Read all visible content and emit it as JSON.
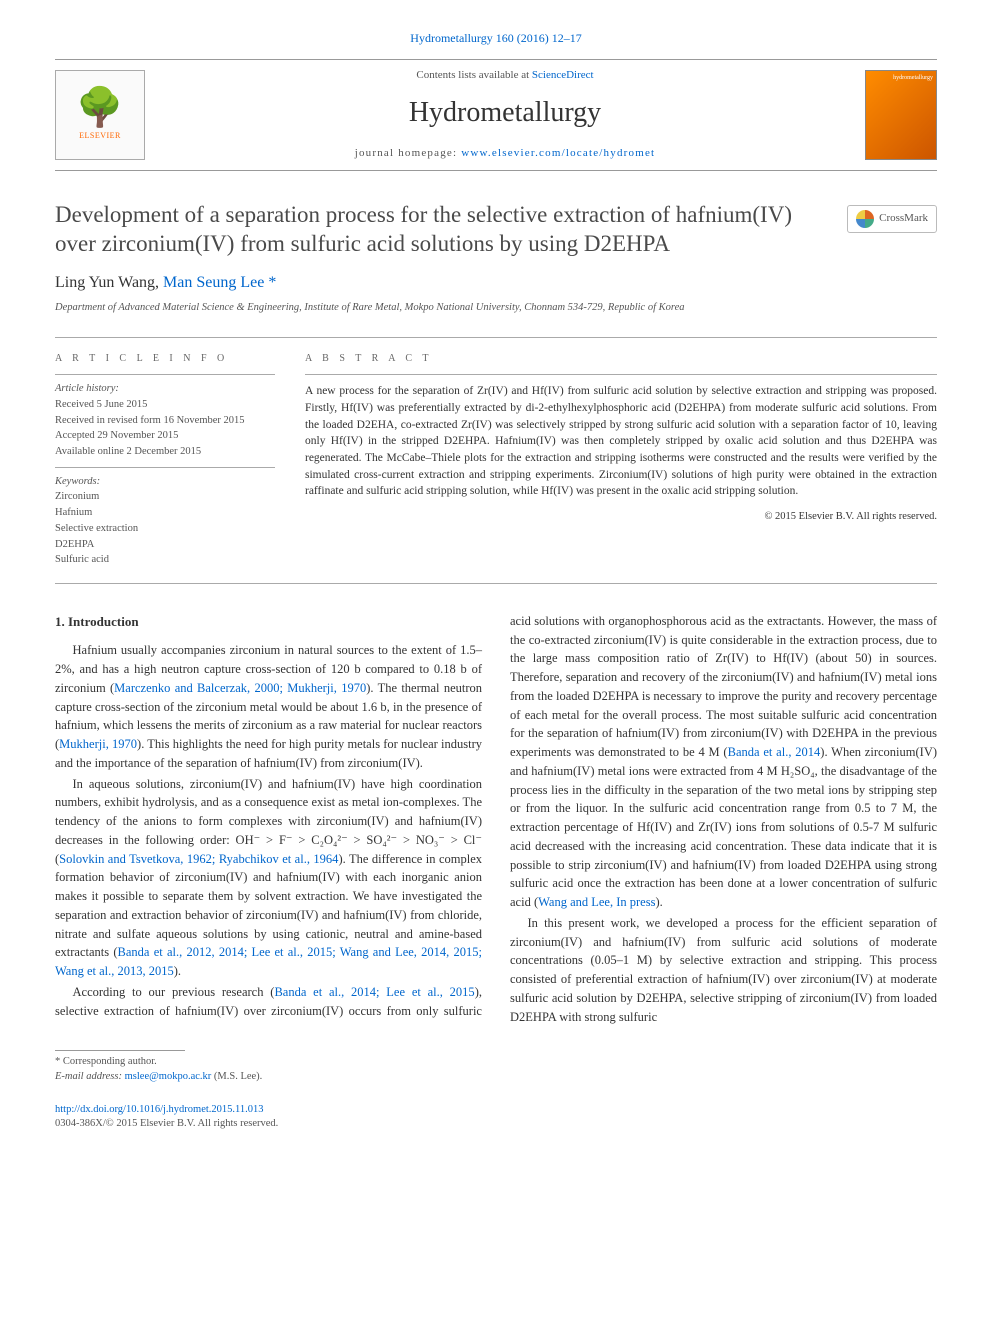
{
  "journal_ref": {
    "name": "Hydrometallurgy",
    "vol": "160 (2016) 12–17",
    "link_text": "Hydrometallurgy 160 (2016) 12–17"
  },
  "header": {
    "contents_avail": "Contents lists available at ",
    "sciencedirect": "ScienceDirect",
    "journal_name": "Hydrometallurgy",
    "homepage_label": "journal homepage: ",
    "homepage_url": "www.elsevier.com/locate/hydromet",
    "elsevier_brand": "ELSEVIER",
    "cover_word": "hydrometallurgy"
  },
  "crossmark": "CrossMark",
  "title": "Development of a separation process for the selective extraction of hafnium(IV) over zirconium(IV) from sulfuric acid solutions by using D2EHPA",
  "authors": {
    "a1": "Ling Yun Wang",
    "a2": "Man Seung Lee",
    "corr_mark": "*"
  },
  "affiliation": "Department of Advanced Material Science & Engineering, Institute of Rare Metal, Mokpo National University, Chonnam 534-729, Republic of Korea",
  "article_info": {
    "heading": "A R T I C L E   I N F O",
    "history_label": "Article history:",
    "received": "Received 5 June 2015",
    "revised": "Received in revised form 16 November 2015",
    "accepted": "Accepted 29 November 2015",
    "online": "Available online 2 December 2015",
    "keywords_label": "Keywords:",
    "kw": [
      "Zirconium",
      "Hafnium",
      "Selective extraction",
      "D2EHPA",
      "Sulfuric acid"
    ]
  },
  "abstract": {
    "heading": "A B S T R A C T",
    "text": "A new process for the separation of Zr(IV) and Hf(IV) from sulfuric acid solution by selective extraction and stripping was proposed. Firstly, Hf(IV) was preferentially extracted by di-2-ethylhexylphosphoric acid (D2EHPA) from moderate sulfuric acid solutions. From the loaded D2EHA, co-extracted Zr(IV) was selectively stripped by strong sulfuric acid solution with a separation factor of 10, leaving only Hf(IV) in the stripped D2EHPA. Hafnium(IV) was then completely stripped by oxalic acid solution and thus D2EHPA was regenerated. The McCabe–Thiele plots for the extraction and stripping isotherms were constructed and the results were verified by the simulated cross-current extraction and stripping experiments. Zirconium(IV) solutions of high purity were obtained in the extraction raffinate and sulfuric acid stripping solution, while Hf(IV) was present in the oxalic acid stripping solution.",
    "copyright": "© 2015 Elsevier B.V. All rights reserved."
  },
  "body": {
    "section_heading": "1. Introduction",
    "p1a": "Hafnium usually accompanies zirconium in natural sources to the extent of 1.5–2%, and has a high neutron capture cross-section of 120 b compared to 0.18 b of zirconium (",
    "p1ref1": "Marczenko and Balcerzak, 2000; Mukherji, 1970",
    "p1b": "). The thermal neutron capture cross-section of the zirconium metal would be about 1.6 b, in the presence of hafnium, which lessens the merits of zirconium as a raw material for nuclear reactors (",
    "p1ref2": "Mukherji, 1970",
    "p1c": "). This highlights the need for high purity metals for nuclear industry and the importance of the separation of hafnium(IV) from zirconium(IV).",
    "p2a": "In aqueous solutions, zirconium(IV) and hafnium(IV) have high coordination numbers, exhibit hydrolysis, and as a consequence exist as metal ion-complexes. The tendency of the anions to form complexes with zirconium(IV) and hafnium(IV) decreases in the following order: OH⁻ > F⁻ > C₂O₄²⁻ > SO₄²⁻ > NO₃⁻ > Cl⁻ (",
    "p2ref1": "Solovkin and Tsvetkova, 1962; Ryabchikov et al., 1964",
    "p2b": "). The difference in complex formation behavior of zirconium(IV) and hafnium(IV) with each inorganic anion makes it possible to separate them by solvent extraction. We have investigated the separation and extraction behavior of zirconium(IV) and hafnium(IV) from chloride, nitrate and sulfate aqueous solutions by using cationic, neutral and amine-based extractants (",
    "p2ref2": "Banda et al., 2012, 2014; Lee et al., 2015; Wang and Lee, 2014, 2015; Wang et al., 2013, 2015",
    "p2c": ").",
    "p3a": "According to our previous research (",
    "p3ref1": "Banda et al., 2014; Lee et al., 2015",
    "p3b": "), selective extraction of hafnium(IV) over zirconium(IV) occurs from only sulfuric acid solutions with organophosphorous acid as the extractants. However, the mass of the co-extracted zirconium(IV) is quite considerable in the extraction process, due to the large mass composition ratio of Zr(IV) to Hf(IV) (about 50) in sources. Therefore, separation and recovery of the zirconium(IV) and hafnium(IV) metal ions from the loaded D2EHPA is necessary to improve the purity and recovery percentage of each metal for the overall process. The most suitable sulfuric acid concentration for the separation of hafnium(IV) from zirconium(IV) with D2EHPA in the previous experiments was demonstrated to be 4 M (",
    "p3ref2": "Banda et al., 2014",
    "p3c": "). When zirconium(IV) and hafnium(IV) metal ions were extracted from 4 M H₂SO₄, the disadvantage of the process lies in the difficulty in the separation of the two metal ions by stripping step or from the liquor. In the sulfuric acid concentration range from 0.5 to 7 M, the extraction percentage of Hf(IV) and Zr(IV) ions from solutions of 0.5-7 M sulfuric acid decreased with the increasing acid concentration. These data indicate that it is possible to strip zirconium(IV) and hafnium(IV) from loaded D2EHPA using strong sulfuric acid once the extraction has been done at a lower concentration of sulfuric acid (",
    "p3ref3": "Wang and Lee, In press",
    "p3d": ").",
    "p4": "In this present work, we developed a process for the efficient separation of zirconium(IV) and hafnium(IV) from sulfuric acid solutions of moderate concentrations (0.05–1 M) by selective extraction and stripping. This process consisted of preferential extraction of hafnium(IV) over zirconium(IV) at moderate sulfuric acid solution by D2EHPA, selective stripping of zirconium(IV) from loaded D2EHPA with strong sulfuric"
  },
  "footer": {
    "corr_label": "* Corresponding author.",
    "email_label": "E-mail address: ",
    "email": "mslee@mokpo.ac.kr",
    "email_suffix": " (M.S. Lee).",
    "doi_link": "http://dx.doi.org/10.1016/j.hydromet.2015.11.013",
    "issn_line": "0304-386X/© 2015 Elsevier B.V. All rights reserved."
  },
  "colors": {
    "link": "#0066cc",
    "text": "#333333",
    "muted": "#555555",
    "rule": "#999999",
    "elsevier_orange": "#ff6600"
  }
}
